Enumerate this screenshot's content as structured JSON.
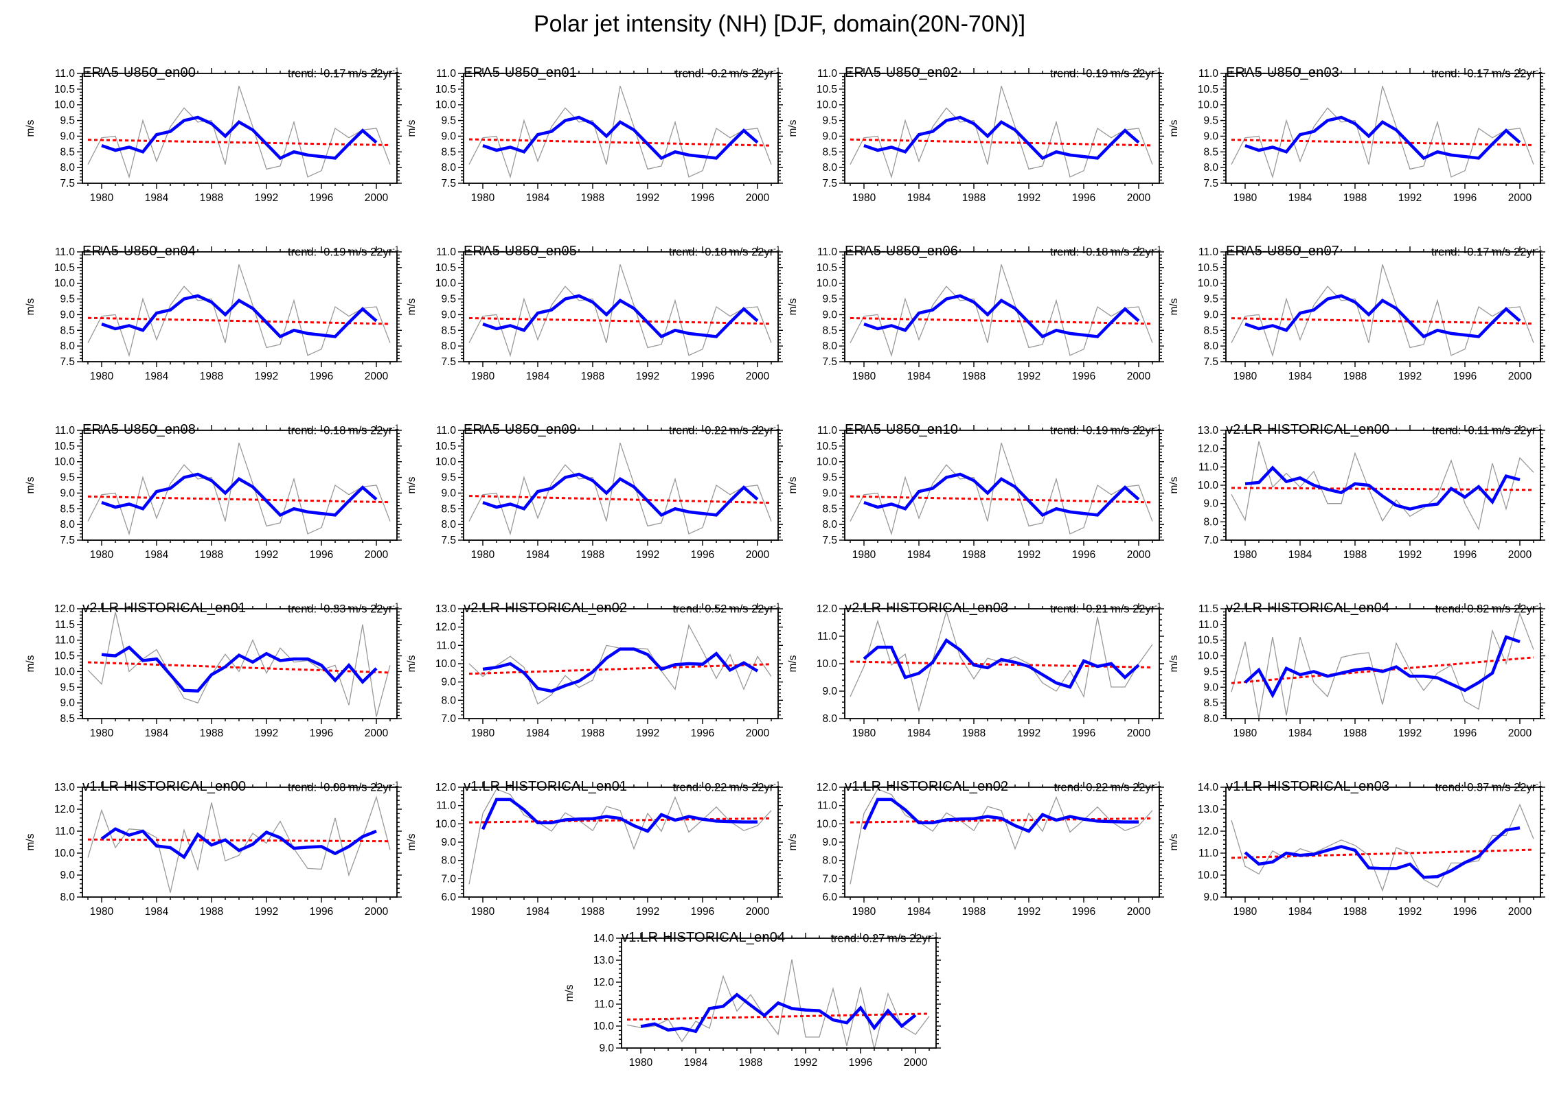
{
  "figure": {
    "title": "Polar jet intensity (NH) [DJF, domain(20N-70N)]"
  },
  "colors": {
    "annual_line": "#999999",
    "smoothed_line": "#0000ff",
    "trend_line": "#ff0000",
    "axis": "#000000",
    "background": "#ffffff"
  },
  "axis": {
    "ylabel": "m/s",
    "x_domain": [
      1978.6,
      2001.5
    ],
    "x_major_ticks": [
      1980,
      1984,
      1988,
      1992,
      1996,
      2000
    ],
    "x_tick_labels": [
      "1980",
      "1984",
      "1988",
      "1992",
      "1996",
      "2000"
    ],
    "x_minor_start": 1979,
    "x_minor_end": 2001
  },
  "trend_format": {
    "prefix": "trend:",
    "unit": "m/s 22yr",
    "sup": "-1"
  },
  "chart_data": {
    "type": "line",
    "description": "Each panel: thin gray annual DJF polar jet intensity (1979-2001), thick blue smoothed series (1980-2000), dashed red linear trend line.",
    "gray_years_start": 1979,
    "blue_years_start": 1980,
    "series_library": {
      "era5": {
        "ylim": [
          7.5,
          11.0
        ],
        "ystep": 0.5,
        "trend_mid": 8.8,
        "gray": [
          8.1,
          8.95,
          9.0,
          7.7,
          9.5,
          8.2,
          9.3,
          9.9,
          9.45,
          9.5,
          8.1,
          10.6,
          9.3,
          7.95,
          8.05,
          9.45,
          7.7,
          7.9,
          9.25,
          8.95,
          9.2,
          9.25,
          8.1
        ],
        "blue": [
          8.7,
          8.55,
          8.65,
          8.5,
          9.05,
          9.15,
          9.5,
          9.6,
          9.4,
          9.0,
          9.45,
          9.2,
          8.75,
          8.3,
          8.5,
          8.4,
          8.35,
          8.3,
          8.75,
          9.18,
          8.8
        ]
      },
      "v2en00": {
        "ylim": [
          7.0,
          13.0
        ],
        "ystep": 1.0,
        "trend_mid": 9.8,
        "gray": [
          9.5,
          8.1,
          12.4,
          9.9,
          10.65,
          9.9,
          10.75,
          9.0,
          9.0,
          11.75,
          9.8,
          8.05,
          9.2,
          8.3,
          8.75,
          9.4,
          11.35,
          9.0,
          7.6,
          11.2,
          8.7,
          11.5,
          10.7
        ],
        "blue": [
          10.08,
          10.15,
          10.95,
          10.2,
          10.4,
          10.0,
          9.77,
          9.6,
          10.08,
          10.0,
          9.41,
          8.9,
          8.7,
          8.88,
          8.97,
          9.82,
          9.35,
          9.92,
          9.09,
          10.5,
          10.3
        ]
      },
      "v2en01": {
        "ylim": [
          8.5,
          12.0
        ],
        "ystep": 0.5,
        "trend_mid": 10.13,
        "gray": [
          10.05,
          9.6,
          11.9,
          10.0,
          10.4,
          10.7,
          9.9,
          9.15,
          9.0,
          9.9,
          10.55,
          10.0,
          11.0,
          9.95,
          10.75,
          10.3,
          10.35,
          10.05,
          10.2,
          8.93,
          11.5,
          8.56,
          10.2
        ],
        "blue": [
          10.54,
          10.5,
          10.77,
          10.35,
          10.4,
          9.9,
          9.4,
          9.38,
          9.9,
          10.15,
          10.52,
          10.3,
          10.57,
          10.35,
          10.4,
          10.4,
          10.2,
          9.72,
          10.2,
          9.67,
          10.1
        ]
      },
      "v2en02": {
        "ylim": [
          7.0,
          13.0
        ],
        "ystep": 1.0,
        "trend_mid": 9.71,
        "gray": [
          10.0,
          9.3,
          9.9,
          10.4,
          9.8,
          7.8,
          8.3,
          9.35,
          8.7,
          9.1,
          11.0,
          10.85,
          10.85,
          10.8,
          9.6,
          8.6,
          12.1,
          10.7,
          9.2,
          10.5,
          8.6,
          10.4,
          9.3
        ],
        "blue": [
          9.7,
          9.8,
          10.0,
          9.5,
          8.65,
          8.5,
          8.8,
          9.05,
          9.55,
          10.3,
          10.8,
          10.8,
          10.5,
          9.7,
          9.95,
          10.0,
          9.97,
          10.55,
          9.65,
          10.05,
          9.6
        ]
      },
      "v2en03": {
        "ylim": [
          8.0,
          12.0
        ],
        "ystep": 1.0,
        "trend_mid": 9.97,
        "gray": [
          8.8,
          9.9,
          11.55,
          9.95,
          10.35,
          8.3,
          10.1,
          11.9,
          10.25,
          9.45,
          10.2,
          10.05,
          10.25,
          10.0,
          9.3,
          9.0,
          9.75,
          8.8,
          11.7,
          9.15,
          9.15,
          10.0,
          10.7
        ],
        "blue": [
          10.18,
          10.6,
          10.6,
          9.5,
          9.65,
          10.05,
          10.85,
          10.5,
          9.95,
          9.85,
          10.15,
          10.05,
          9.9,
          9.6,
          9.3,
          9.15,
          10.1,
          9.9,
          10.0,
          9.5,
          9.95
        ]
      },
      "v2en04": {
        "ylim": [
          8.0,
          11.5
        ],
        "ystep": 0.5,
        "trend_mid": 9.54,
        "gray": [
          8.85,
          10.45,
          8.0,
          10.6,
          8.1,
          10.6,
          9.15,
          8.7,
          9.95,
          10.05,
          10.1,
          8.45,
          10.4,
          9.55,
          8.9,
          9.45,
          9.7,
          8.55,
          8.3,
          10.8,
          9.75,
          11.35,
          10.2
        ],
        "blue": [
          9.15,
          9.55,
          8.75,
          9.6,
          9.4,
          9.5,
          9.35,
          9.45,
          9.55,
          9.6,
          9.5,
          9.65,
          9.35,
          9.35,
          9.3,
          9.1,
          8.9,
          9.15,
          9.45,
          10.6,
          10.45
        ]
      },
      "v1en00": {
        "ylim": [
          8.0,
          13.0
        ],
        "ystep": 1.0,
        "trend_mid": 10.58,
        "gray": [
          9.8,
          11.95,
          10.25,
          11.1,
          11.05,
          10.7,
          8.2,
          11.05,
          9.25,
          12.3,
          9.65,
          9.9,
          10.9,
          10.45,
          11.45,
          10.2,
          9.3,
          9.27,
          11.6,
          9.0,
          10.7,
          12.55,
          10.15
        ],
        "blue": [
          10.65,
          11.1,
          10.82,
          11.0,
          10.33,
          10.25,
          9.82,
          10.85,
          10.37,
          10.6,
          10.12,
          10.4,
          10.95,
          10.7,
          10.22,
          10.27,
          10.3,
          9.98,
          10.3,
          10.75,
          11.0
        ]
      },
      "v1en01": {
        "ylim": [
          6.0,
          12.0
        ],
        "ystep": 1.0,
        "trend_mid": 10.19,
        "gray": [
          6.7,
          10.57,
          11.9,
          11.6,
          10.48,
          10.1,
          9.6,
          10.6,
          10.18,
          9.63,
          10.95,
          10.73,
          8.64,
          10.57,
          9.59,
          11.45,
          9.55,
          10.22,
          10.92,
          10.13,
          9.63,
          9.9,
          10.73
        ],
        "blue": [
          9.7,
          11.33,
          11.33,
          10.77,
          10.06,
          10.06,
          10.22,
          10.26,
          10.28,
          10.4,
          10.3,
          9.9,
          9.6,
          10.5,
          10.2,
          10.4,
          10.25,
          10.15,
          10.12,
          10.1,
          10.1
        ]
      },
      "v1en03": {
        "ylim": [
          9.0,
          14.0
        ],
        "ystep": 1.0,
        "trend_mid": 10.97,
        "gray": [
          12.5,
          10.4,
          10.05,
          11.1,
          10.75,
          11.2,
          11.0,
          11.3,
          11.6,
          11.35,
          10.9,
          9.3,
          11.25,
          11.0,
          9.8,
          9.45,
          10.55,
          10.55,
          10.65,
          11.8,
          11.8,
          13.2,
          11.65
        ],
        "blue": [
          11.03,
          10.5,
          10.6,
          11.0,
          10.9,
          10.95,
          11.13,
          11.3,
          11.13,
          10.33,
          10.3,
          10.3,
          10.5,
          9.9,
          9.93,
          10.2,
          10.57,
          10.85,
          11.5,
          12.05,
          12.15
        ]
      },
      "v1en04": {
        "ylim": [
          9.0,
          14.0
        ],
        "ystep": 1.0,
        "trend_mid": 10.43,
        "gray": [
          10.05,
          9.93,
          10.0,
          10.3,
          9.3,
          10.22,
          9.9,
          12.27,
          10.68,
          11.43,
          10.46,
          9.62,
          13.03,
          9.5,
          9.5,
          11.7,
          9.1,
          11.77,
          8.95,
          11.48,
          10.0,
          9.62,
          10.45
        ],
        "blue": [
          9.98,
          10.1,
          9.82,
          9.9,
          9.76,
          10.8,
          10.9,
          11.43,
          10.95,
          10.48,
          11.05,
          10.8,
          10.73,
          10.7,
          10.28,
          10.15,
          10.83,
          9.92,
          10.7,
          10.0,
          10.5
        ]
      }
    },
    "panels": [
      {
        "title": "ERA5-U850_en00",
        "trend": "-0.17",
        "series": "era5"
      },
      {
        "title": "ERA5-U850_en01",
        "trend": "-0.2",
        "series": "era5"
      },
      {
        "title": "ERA5-U850_en02",
        "trend": "-0.19",
        "series": "era5"
      },
      {
        "title": "ERA5-U850_en03",
        "trend": "-0.17",
        "series": "era5"
      },
      {
        "title": "ERA5-U850_en04",
        "trend": "-0.19",
        "series": "era5"
      },
      {
        "title": "ERA5-U850_en05",
        "trend": "-0.18",
        "series": "era5"
      },
      {
        "title": "ERA5-U850_en06",
        "trend": "-0.18",
        "series": "era5"
      },
      {
        "title": "ERA5-U850_en07",
        "trend": "-0.17",
        "series": "era5"
      },
      {
        "title": "ERA5-U850_en08",
        "trend": "-0.18",
        "series": "era5"
      },
      {
        "title": "ERA5-U850_en09",
        "trend": "-0.22",
        "series": "era5"
      },
      {
        "title": "ERA5-U850_en10",
        "trend": "-0.19",
        "series": "era5"
      },
      {
        "title": "v2.LR-HISTORICAL_en00",
        "trend": "-0.11",
        "series": "v2en00"
      },
      {
        "title": "v2.LR-HISTORICAL_en01",
        "trend": "-0.33",
        "series": "v2en01"
      },
      {
        "title": "v2.LR-HISTORICAL_en02",
        "trend": "0.52",
        "series": "v2en02"
      },
      {
        "title": "v2.LR-HISTORICAL_en03",
        "trend": "-0.21",
        "series": "v2en03"
      },
      {
        "title": "v2.LR-HISTORICAL_en04",
        "trend": "0.82",
        "series": "v2en04"
      },
      {
        "title": "v1.LR-HISTORICAL_en00",
        "trend": "-0.08",
        "series": "v1en00"
      },
      {
        "title": "v1.LR-HISTORICAL_en01",
        "trend": "0.22",
        "series": "v1en01"
      },
      {
        "title": "v1.LR-HISTORICAL_en02",
        "trend": "0.22",
        "series": "v1en01"
      },
      {
        "title": "v1.LR-HISTORICAL_en03",
        "trend": "0.37",
        "series": "v1en03"
      },
      {
        "title": "v1.LR-HISTORICAL_en04",
        "trend": "0.27",
        "series": "v1en04"
      }
    ]
  }
}
